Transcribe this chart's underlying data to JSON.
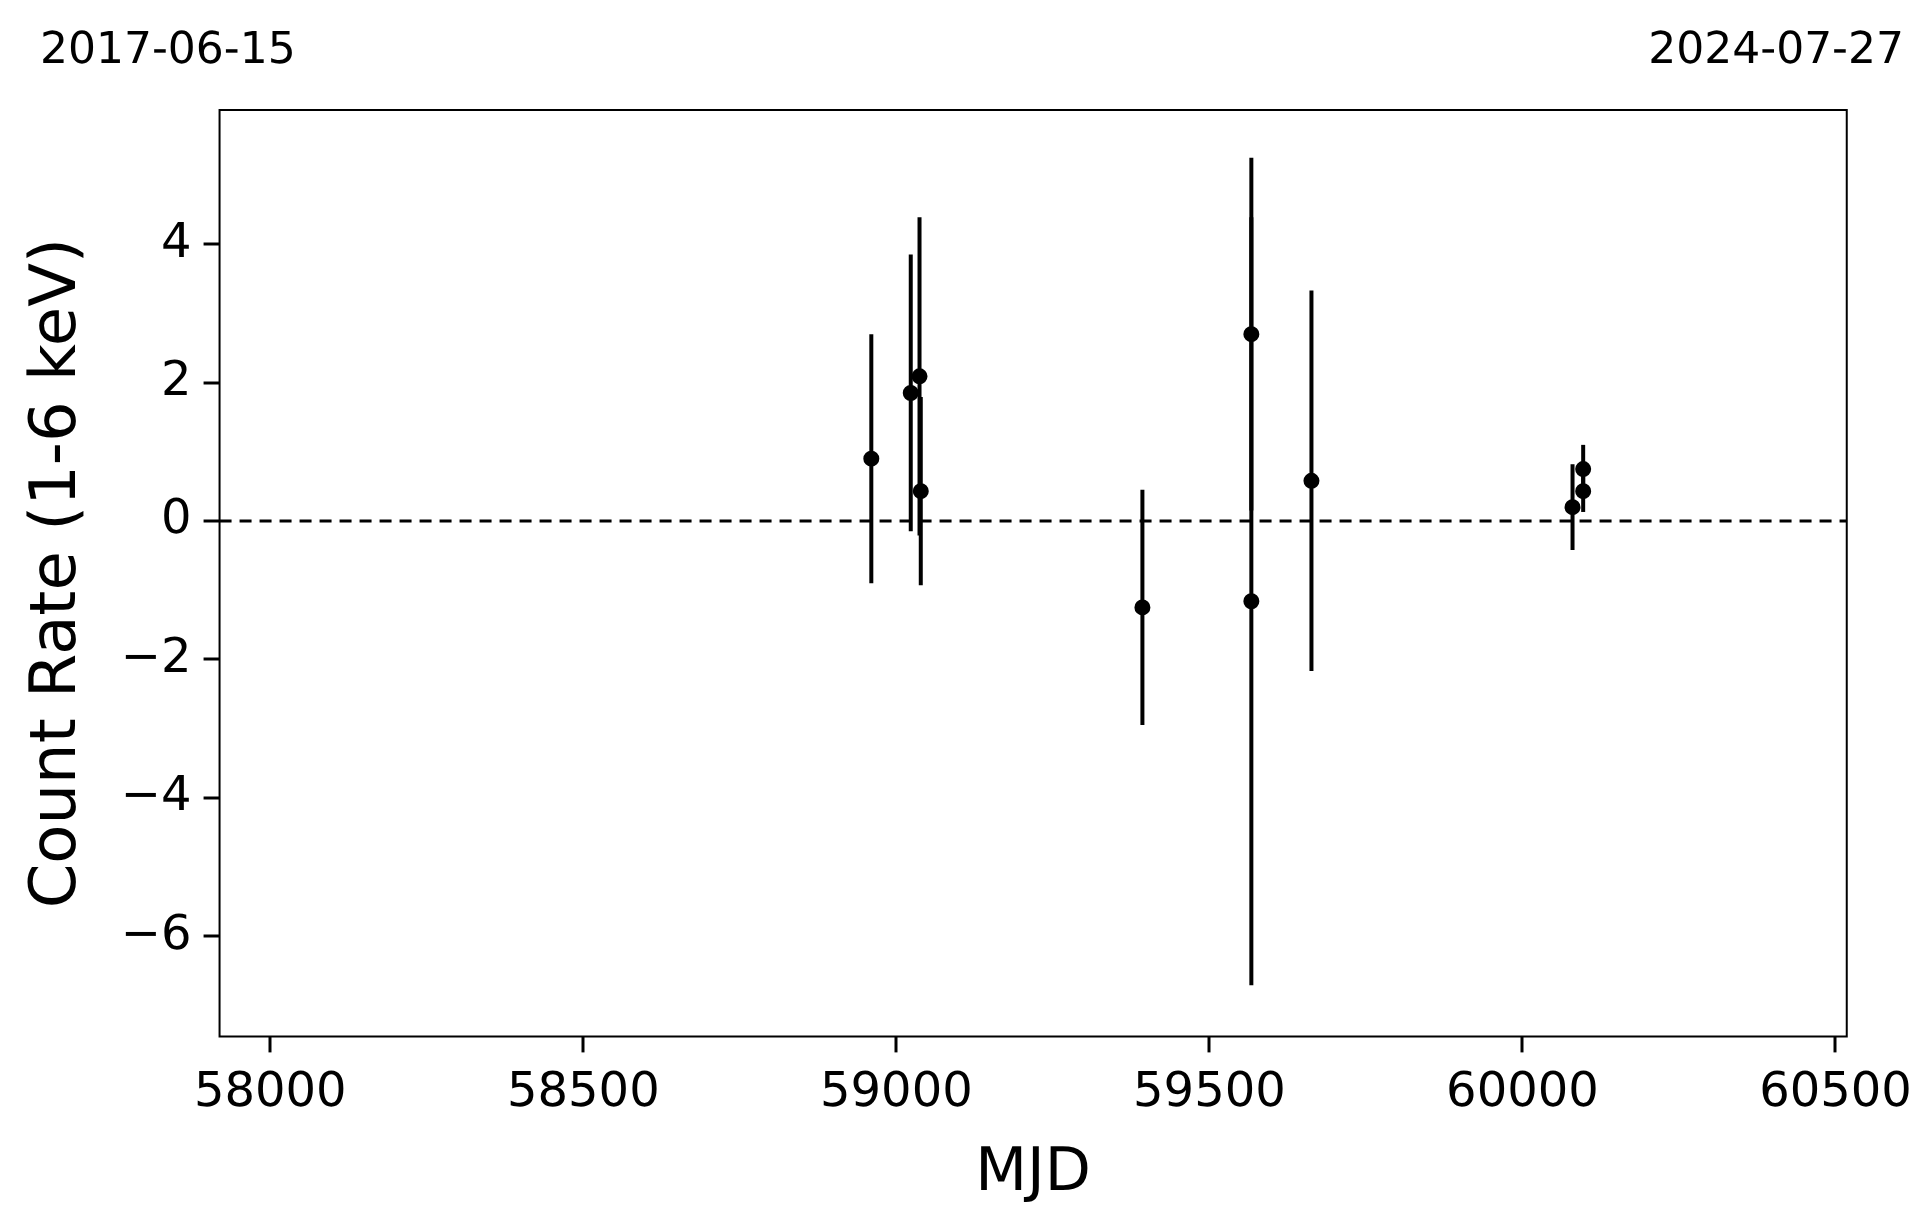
{
  "chart_data": {
    "type": "scatter",
    "xlabel": "MJD",
    "ylabel": "Count Rate (1-6 keV)",
    "series": [
      {
        "color": "#000000",
        "x": [
          58960,
          59023,
          59037,
          59039,
          59393,
          59567,
          59567,
          59663,
          60080,
          60097,
          60097
        ],
        "values": [
          0.9,
          1.85,
          2.09,
          0.43,
          -1.25,
          2.7,
          -1.16,
          0.58,
          0.2,
          0.75,
          0.43
        ],
        "errors": [
          1.8,
          2.0,
          2.3,
          1.36,
          1.7,
          2.55,
          5.55,
          2.75,
          0.62,
          0.35,
          0.3
        ]
      }
    ],
    "xlim": [
      57919,
      60518
    ],
    "xticks": [
      58000,
      58500,
      59000,
      59500,
      60000,
      60500
    ],
    "annotations": [
      "2017-06-15",
      "2024-07-27"
    ],
    "ylim": [
      -7.45,
      5.94
    ],
    "yticks": [
      -6,
      -4,
      -2,
      0,
      2,
      4
    ],
    "ref_lines": [
      {
        "axis": "y",
        "value": 0,
        "color": "#000000",
        "line_style": "dashed"
      }
    ],
    "marker": "circle",
    "grid": false,
    "legend": false
  }
}
